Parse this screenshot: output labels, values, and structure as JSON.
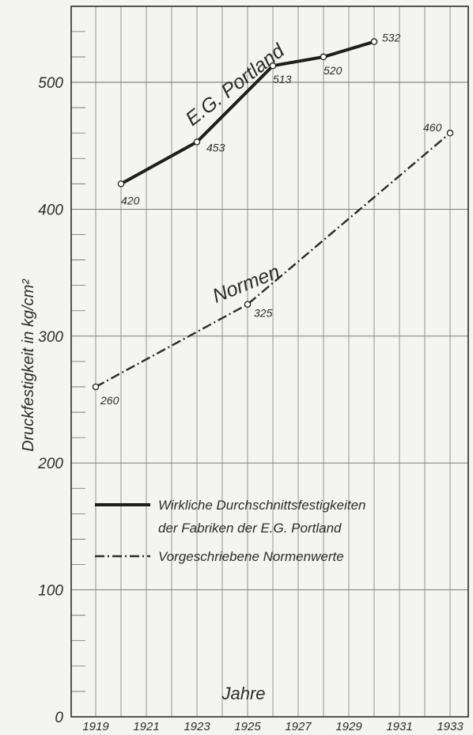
{
  "chart_data": {
    "type": "line",
    "ylabel": "Druckfestigkeit in kg/cm²",
    "xlabel": "Jahre",
    "ylim": [
      0,
      560
    ],
    "xlim": [
      1918.6,
      1933.6
    ],
    "y_ticks": [
      "0",
      "100",
      "200",
      "300",
      "400",
      "500"
    ],
    "y_tick_values": [
      0,
      100,
      200,
      300,
      400,
      500
    ],
    "x_ticks": [
      "1919",
      "1921",
      "1923",
      "1925",
      "1927",
      "1929",
      "1931",
      "1933"
    ],
    "x_tick_values": [
      1919,
      1921,
      1923,
      1925,
      1927,
      1929,
      1931,
      1933
    ],
    "grid": true,
    "legend_position": "lower-center",
    "series": [
      {
        "name": "Wirkliche Durchschnittsfestigkeiten der Fabriken der E.G. Portland",
        "line_label": "E.G. Portland",
        "style": "solid",
        "color": "#1e1e1e",
        "x": [
          1920,
          1923,
          1926,
          1928,
          1930
        ],
        "values": [
          420,
          453,
          513,
          520,
          532
        ],
        "labels": [
          "420",
          "453",
          "513",
          "520",
          "532"
        ]
      },
      {
        "name": "Vorgeschriebene Normenwerte",
        "line_label": "Normen",
        "style": "dashdot",
        "color": "#2a2a2a",
        "x": [
          1919,
          1925,
          1933
        ],
        "values": [
          260,
          325,
          460
        ],
        "labels": [
          "260",
          "325",
          "460"
        ]
      }
    ],
    "legend": [
      {
        "lines": [
          "Wirkliche Durchschnittsfestigkeiten",
          "der Fabriken der E.G. Portland"
        ],
        "style": "solid"
      },
      {
        "lines": [
          "Vorgeschriebene Normenwerte"
        ],
        "style": "dashdot"
      }
    ]
  }
}
